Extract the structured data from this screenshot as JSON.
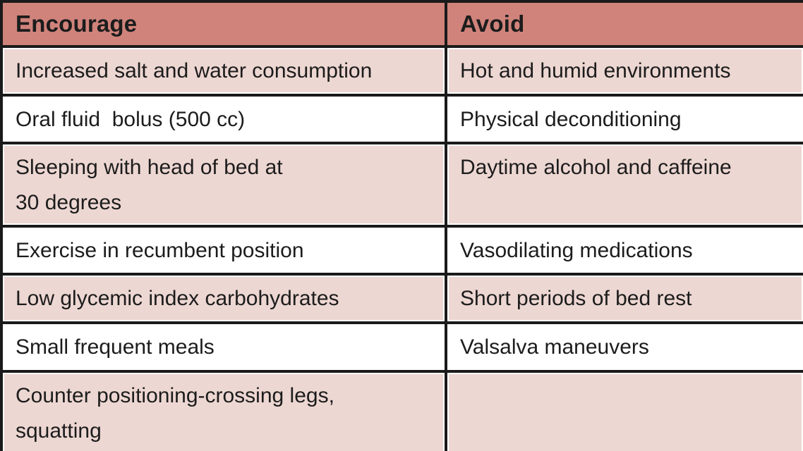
{
  "table": {
    "title": "Encourage vs Avoid recommendations table",
    "columns": [
      {
        "label": "Encourage"
      },
      {
        "label": "Avoid"
      }
    ],
    "rows": [
      {
        "encourage": "Increased salt and water consumption",
        "avoid": "Hot and humid environments"
      },
      {
        "encourage": "Oral fluid  bolus (500 cc)",
        "avoid": "Physical deconditioning"
      },
      {
        "encourage": "Sleeping with head of bed at\n30 degrees",
        "avoid": "Daytime alcohol and caffeine"
      },
      {
        "encourage": "Exercise in recumbent position",
        "avoid": "Vasodilating medications"
      },
      {
        "encourage": "Low glycemic index carbohydrates",
        "avoid": "Short periods of bed rest"
      },
      {
        "encourage": "Small frequent meals",
        "avoid": "Valsalva maneuvers"
      },
      {
        "encourage": "Counter positioning-crossing legs,\nsquatting",
        "avoid": ""
      }
    ],
    "colors": {
      "header_bg": "#d0837b",
      "row_tint": "#edd7d2",
      "row_plain": "#ffffff",
      "border": "#1a1a1a",
      "text": "#1c1c1c"
    }
  }
}
